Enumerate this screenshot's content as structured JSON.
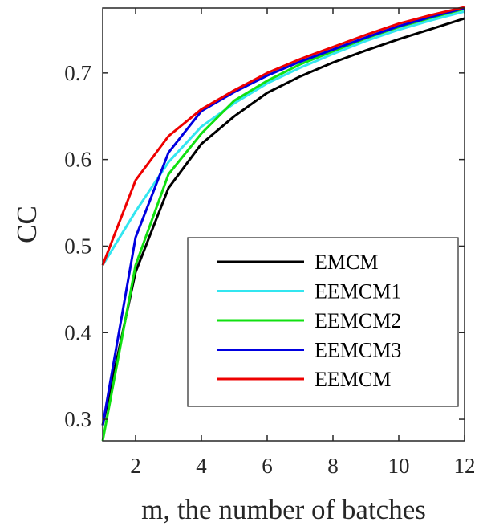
{
  "chart_data": {
    "type": "line",
    "title": "",
    "xlabel": "m, the number of batches",
    "ylabel": "CC",
    "xlim": [
      1,
      12
    ],
    "ylim": [
      0.275,
      0.775
    ],
    "xticks": [
      2,
      4,
      6,
      8,
      10,
      12
    ],
    "xtick_labels": [
      "2",
      "4",
      "6",
      "8",
      "10",
      "12"
    ],
    "yticks": [
      0.3,
      0.4,
      0.5,
      0.6,
      0.7
    ],
    "ytick_labels": [
      "0.3",
      "0.4",
      "0.5",
      "0.6",
      "0.7"
    ],
    "grid": false,
    "legend_position": "lower-right",
    "x": [
      1,
      2,
      3,
      4,
      5,
      6,
      7,
      8,
      9,
      10,
      11,
      12
    ],
    "series": [
      {
        "name": "EMCM",
        "color": "#000000",
        "values": [
          0.293,
          0.47,
          0.567,
          0.618,
          0.65,
          0.677,
          0.696,
          0.712,
          0.726,
          0.739,
          0.751,
          0.763
        ]
      },
      {
        "name": "EEMCM1",
        "color": "#33e6f0",
        "values": [
          0.478,
          0.54,
          0.597,
          0.638,
          0.665,
          0.688,
          0.706,
          0.722,
          0.737,
          0.75,
          0.761,
          0.771
        ]
      },
      {
        "name": "EEMCM2",
        "color": "#11e011",
        "values": [
          0.275,
          0.478,
          0.583,
          0.63,
          0.668,
          0.691,
          0.71,
          0.725,
          0.74,
          0.753,
          0.764,
          0.774
        ]
      },
      {
        "name": "EEMCM3",
        "color": "#0000e0",
        "values": [
          0.293,
          0.51,
          0.608,
          0.656,
          0.678,
          0.697,
          0.713,
          0.727,
          0.741,
          0.754,
          0.765,
          0.775
        ]
      },
      {
        "name": "EEMCM",
        "color": "#ee0000",
        "values": [
          0.478,
          0.576,
          0.627,
          0.658,
          0.68,
          0.7,
          0.716,
          0.73,
          0.744,
          0.757,
          0.767,
          0.776
        ]
      }
    ]
  }
}
